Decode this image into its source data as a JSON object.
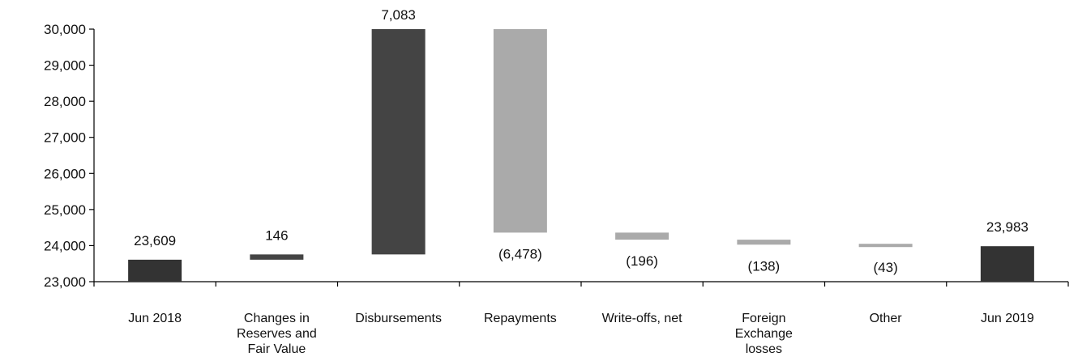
{
  "chart_data": {
    "type": "bar",
    "subtype": "waterfall",
    "ylim": [
      23000,
      30000
    ],
    "yticks": [
      "23,000",
      "24,000",
      "25,000",
      "26,000",
      "27,000",
      "28,000",
      "29,000",
      "30,000"
    ],
    "colors": {
      "total": "#333333",
      "increase": "#444444",
      "decrease": "#aaaaaa"
    },
    "categories": [
      {
        "label": [
          "Jun 2018"
        ],
        "kind": "total",
        "value": 23609,
        "data_label": "23,609"
      },
      {
        "label": [
          "Changes in",
          "Reserves and",
          "Fair Value"
        ],
        "kind": "increase",
        "value": 146,
        "data_label": "146"
      },
      {
        "label": [
          "Disbursements"
        ],
        "kind": "increase",
        "value": 7083,
        "data_label": "7,083"
      },
      {
        "label": [
          "Repayments"
        ],
        "kind": "decrease",
        "value": -6478,
        "data_label": "(6,478)"
      },
      {
        "label": [
          "Write-offs, net"
        ],
        "kind": "decrease",
        "value": -196,
        "data_label": "(196)"
      },
      {
        "label": [
          "Foreign",
          "Exchange",
          "losses"
        ],
        "kind": "decrease",
        "value": -138,
        "data_label": "(138)"
      },
      {
        "label": [
          "Other"
        ],
        "kind": "decrease",
        "value": -43,
        "data_label": "(43)"
      },
      {
        "label": [
          "Jun 2019"
        ],
        "kind": "total",
        "value": 23983,
        "data_label": "23,983"
      }
    ]
  }
}
